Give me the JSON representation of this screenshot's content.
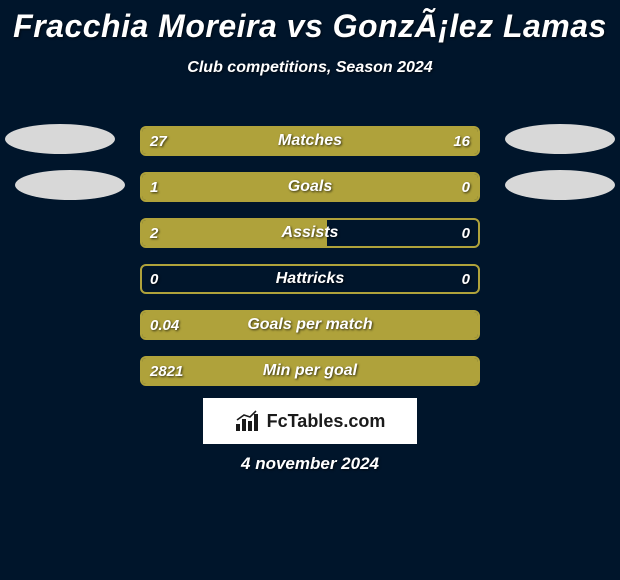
{
  "header": {
    "title": "Fracchia Moreira vs GonzÃ¡lez Lamas",
    "subtitle": "Club competitions, Season 2024"
  },
  "colors": {
    "background": "#00152b",
    "bar_fill": "#afa23b",
    "bar_border": "#afa23b",
    "text": "#ffffff",
    "logo_bg": "#ffffff",
    "logo_text": "#1a1a1a",
    "badge": "#d8d8d8"
  },
  "chart": {
    "type": "diverging-bar",
    "rows": [
      {
        "label": "Matches",
        "left_val": "27",
        "right_val": "16",
        "left_pct": 60,
        "right_pct": 40
      },
      {
        "label": "Goals",
        "left_val": "1",
        "right_val": "0",
        "left_pct": 76,
        "right_pct": 24
      },
      {
        "label": "Assists",
        "left_val": "2",
        "right_val": "0",
        "left_pct": 55,
        "right_pct": 0
      },
      {
        "label": "Hattricks",
        "left_val": "0",
        "right_val": "0",
        "left_pct": 0,
        "right_pct": 0
      },
      {
        "label": "Goals per match",
        "left_val": "0.04",
        "right_val": "",
        "left_pct": 100,
        "right_pct": 0
      },
      {
        "label": "Min per goal",
        "left_val": "2821",
        "right_val": "",
        "left_pct": 100,
        "right_pct": 0
      }
    ]
  },
  "logo": {
    "text": "FcTables.com"
  },
  "footer": {
    "date": "4 november 2024"
  }
}
